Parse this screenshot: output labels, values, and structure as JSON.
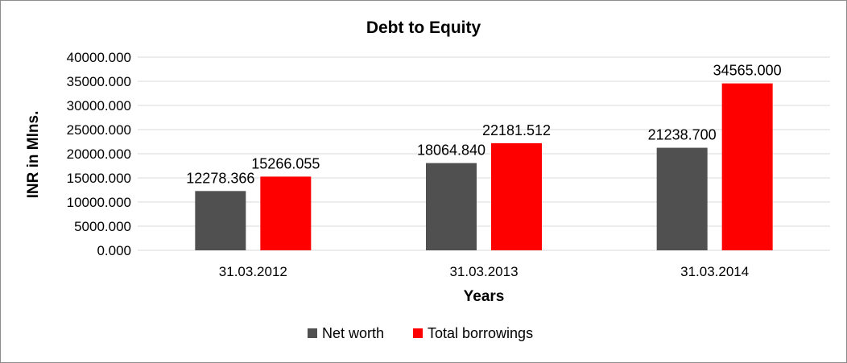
{
  "chart_data": {
    "type": "bar",
    "title": "Debt to Equity",
    "xlabel": "Years",
    "ylabel": "INR in Mlns.",
    "categories": [
      "31.03.2012",
      "31.03.2013",
      "31.03.2014"
    ],
    "series": [
      {
        "name": "Net worth",
        "values": [
          12278.366,
          18064.84,
          21238.7
        ],
        "labels": [
          "12278.366",
          "18064.840",
          "21238.700"
        ],
        "color": "#505050"
      },
      {
        "name": "Total borrowings",
        "values": [
          15266.055,
          22181.512,
          34565.0
        ],
        "labels": [
          "15266.055",
          "22181.512",
          "34565.000"
        ],
        "color": "#ff0000"
      }
    ],
    "ylim": [
      0,
      40000
    ],
    "yticks": [
      0,
      5000,
      10000,
      15000,
      20000,
      25000,
      30000,
      35000,
      40000
    ],
    "ytick_labels": [
      "0.000",
      "5000.000",
      "10000.000",
      "15000.000",
      "20000.000",
      "25000.000",
      "30000.000",
      "35000.000",
      "40000.000"
    ],
    "grid": true,
    "legend": "bottom"
  }
}
